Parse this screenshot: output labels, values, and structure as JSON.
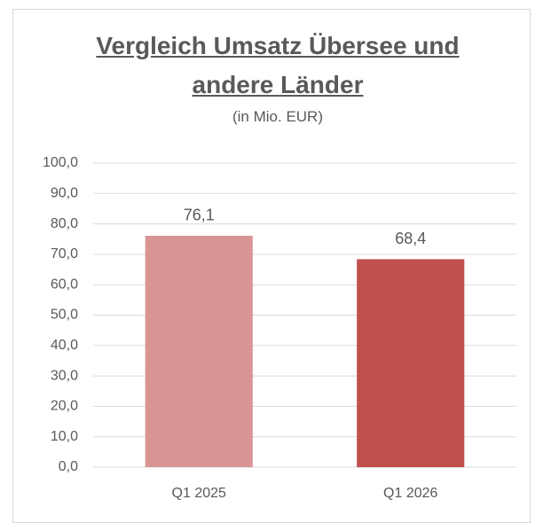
{
  "chart_data": {
    "type": "bar",
    "title": "Vergleich Umsatz Übersee und andere Länder",
    "subtitle": "(in Mio. EUR)",
    "categories": [
      "Q1 2025",
      "Q1 2026"
    ],
    "values": [
      76.1,
      68.4
    ],
    "value_labels": [
      "76,1",
      "68,4"
    ],
    "colors": [
      "#d99594",
      "#c0504d"
    ],
    "ylim": [
      0,
      100
    ],
    "yticks": [
      {
        "value": 0,
        "label": "0,0"
      },
      {
        "value": 10,
        "label": "10,0"
      },
      {
        "value": 20,
        "label": "20,0"
      },
      {
        "value": 30,
        "label": "30,0"
      },
      {
        "value": 40,
        "label": "40,0"
      },
      {
        "value": 50,
        "label": "50,0"
      },
      {
        "value": 60,
        "label": "60,0"
      },
      {
        "value": 70,
        "label": "70,0"
      },
      {
        "value": 80,
        "label": "80,0"
      },
      {
        "value": 90,
        "label": "90,0"
      },
      {
        "value": 100,
        "label": "100,0"
      }
    ],
    "grid": true
  }
}
